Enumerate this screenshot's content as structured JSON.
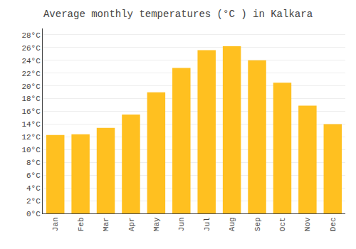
{
  "chart_data": {
    "type": "bar",
    "title": "Average monthly temperatures (°C ) in Kalkara",
    "categories": [
      "Jan",
      "Feb",
      "Mar",
      "Apr",
      "May",
      "Jun",
      "Jul",
      "Aug",
      "Sep",
      "Oct",
      "Nov",
      "Dec"
    ],
    "values": [
      12.3,
      12.4,
      13.4,
      15.5,
      19.0,
      22.8,
      25.6,
      26.2,
      24.0,
      20.5,
      16.9,
      14.0
    ],
    "color": "#FFC020",
    "ylim": [
      0,
      29
    ],
    "yticks": [
      {
        "value": 0,
        "label": "0°C"
      },
      {
        "value": 2,
        "label": "2°C"
      },
      {
        "value": 4,
        "label": "4°C"
      },
      {
        "value": 6,
        "label": "6°C"
      },
      {
        "value": 8,
        "label": "8°C"
      },
      {
        "value": 10,
        "label": "10°C"
      },
      {
        "value": 12,
        "label": "12°C"
      },
      {
        "value": 14,
        "label": "14°C"
      },
      {
        "value": 16,
        "label": "16°C"
      },
      {
        "value": 18,
        "label": "18°C"
      },
      {
        "value": 20,
        "label": "20°C"
      },
      {
        "value": 22,
        "label": "22°C"
      },
      {
        "value": 24,
        "label": "24°C"
      },
      {
        "value": 26,
        "label": "26°C"
      },
      {
        "value": 28,
        "label": "28°C"
      }
    ],
    "grid": true
  }
}
